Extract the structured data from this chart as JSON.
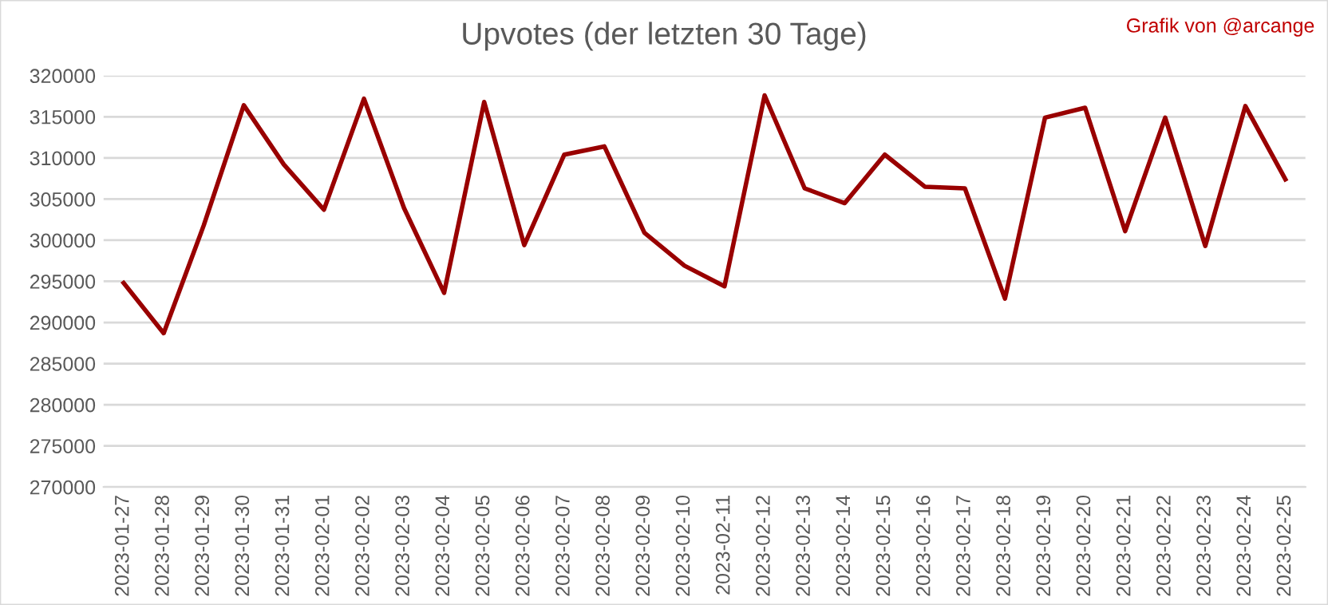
{
  "chart_data": {
    "type": "line",
    "title": "Upvotes (der letzten 30 Tage)",
    "annotations": [
      "Grafik von @arcange"
    ],
    "categories": [
      "2023-01-27",
      "2023-01-28",
      "2023-01-29",
      "2023-01-30",
      "2023-01-31",
      "2023-02-01",
      "2023-02-02",
      "2023-02-03",
      "2023-02-04",
      "2023-02-05",
      "2023-02-06",
      "2023-02-07",
      "2023-02-08",
      "2023-02-09",
      "2023-02-10",
      "2023-02-11",
      "2023-02-12",
      "2023-02-13",
      "2023-02-14",
      "2023-02-15",
      "2023-02-16",
      "2023-02-17",
      "2023-02-18",
      "2023-02-19",
      "2023-02-20",
      "2023-02-21",
      "2023-02-22",
      "2023-02-23",
      "2023-02-24",
      "2023-02-25"
    ],
    "series": [
      {
        "color": "#990000",
        "values": [
          294800,
          288700,
          301800,
          316400,
          309200,
          303700,
          317200,
          303900,
          293600,
          316800,
          299400,
          310400,
          311400,
          300900,
          296900,
          294400,
          317600,
          306300,
          304500,
          310400,
          306500,
          306300,
          292900,
          314900,
          316100,
          301100,
          314900,
          299300,
          316300,
          307400
        ]
      }
    ],
    "ylim": [
      270000,
      320000
    ],
    "yticks": [
      270000,
      275000,
      280000,
      285000,
      290000,
      295000,
      300000,
      305000,
      310000,
      315000,
      320000
    ],
    "grid": "y",
    "marker": "none",
    "line_style": "solid"
  }
}
